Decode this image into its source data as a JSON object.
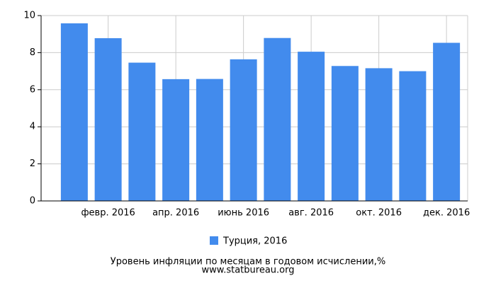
{
  "chart_data": {
    "type": "bar",
    "title": "Уровень инфляции по месяцам в годовом исчислении,%",
    "source": "www.statbureau.org",
    "categories": [
      null,
      "февр. 2016",
      null,
      "апр. 2016",
      null,
      "июнь 2016",
      null,
      "авг. 2016",
      null,
      "окт. 2016",
      null,
      "дек. 2016"
    ],
    "series": [
      {
        "name": "Турция, 2016",
        "color": "#428bed",
        "values": [
          9.58,
          8.78,
          7.46,
          6.57,
          6.58,
          7.64,
          8.79,
          8.05,
          7.28,
          7.16,
          7.0,
          8.53
        ]
      }
    ],
    "ylim": [
      0,
      10
    ],
    "yticks": [
      0,
      2,
      4,
      6,
      8,
      10
    ],
    "grid": true
  }
}
